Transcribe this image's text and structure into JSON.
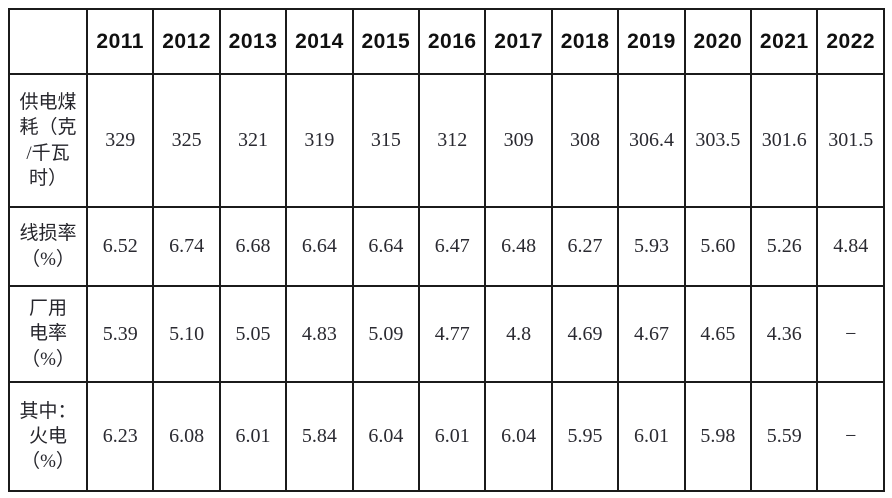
{
  "colors": {
    "background": "#ffffff",
    "border": "#1b1b1b",
    "year_text": "#101010",
    "value_text": "#2a2a31"
  },
  "table": {
    "corner": "",
    "years": [
      "2011",
      "2012",
      "2013",
      "2014",
      "2015",
      "2016",
      "2017",
      "2018",
      "2019",
      "2020",
      "2021",
      "2022"
    ],
    "rows": [
      {
        "label": "供电煤\n耗（克\n/千瓦\n时）",
        "values": [
          "329",
          "325",
          "321",
          "319",
          "315",
          "312",
          "309",
          "308",
          "306.4",
          "303.5",
          "301.6",
          "301.5"
        ]
      },
      {
        "label": "线损率\n（%）",
        "values": [
          "6.52",
          "6.74",
          "6.68",
          "6.64",
          "6.64",
          "6.47",
          "6.48",
          "6.27",
          "5.93",
          "5.60",
          "5.26",
          "4.84"
        ]
      },
      {
        "label": "厂用\n电率\n（%）",
        "values": [
          "5.39",
          "5.10",
          "5.05",
          "4.83",
          "5.09",
          "4.77",
          "4.8",
          "4.69",
          "4.67",
          "4.65",
          "4.36",
          "−"
        ]
      },
      {
        "label": "其中：\n火电\n（%）",
        "values": [
          "6.23",
          "6.08",
          "6.01",
          "5.84",
          "6.04",
          "6.01",
          "6.04",
          "5.95",
          "6.01",
          "5.98",
          "5.59",
          "−"
        ]
      }
    ]
  },
  "chart_data": {
    "type": "table",
    "categories": [
      "2011",
      "2012",
      "2013",
      "2014",
      "2015",
      "2016",
      "2017",
      "2018",
      "2019",
      "2020",
      "2021",
      "2022"
    ],
    "series": [
      {
        "name": "供电煤耗（克/千瓦时）",
        "values": [
          329,
          325,
          321,
          319,
          315,
          312,
          309,
          308,
          306.4,
          303.5,
          301.6,
          301.5
        ]
      },
      {
        "name": "线损率（%）",
        "values": [
          6.52,
          6.74,
          6.68,
          6.64,
          6.64,
          6.47,
          6.48,
          6.27,
          5.93,
          5.6,
          5.26,
          4.84
        ]
      },
      {
        "name": "厂用电率（%）",
        "values": [
          5.39,
          5.1,
          5.05,
          4.83,
          5.09,
          4.77,
          4.8,
          4.69,
          4.67,
          4.65,
          4.36,
          null
        ]
      },
      {
        "name": "其中：火电（%）",
        "values": [
          6.23,
          6.08,
          6.01,
          5.84,
          6.04,
          6.01,
          6.04,
          5.95,
          6.01,
          5.98,
          5.59,
          null
        ]
      }
    ]
  }
}
